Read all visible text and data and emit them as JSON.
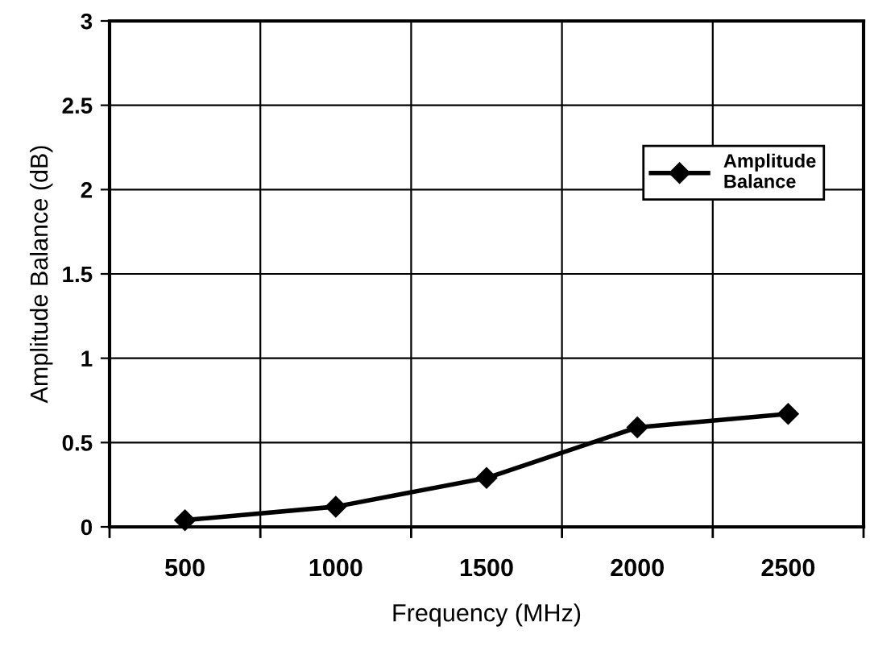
{
  "chart_data": {
    "type": "line",
    "xlabel": "Frequency (MHz)",
    "ylabel": "Amplitude Balance (dB)",
    "categories": [
      "500",
      "1000",
      "1500",
      "2000",
      "2500"
    ],
    "series": [
      {
        "name": "Amplitude\nBalance",
        "color": "#000000",
        "values": [
          0.04,
          0.12,
          0.29,
          0.59,
          0.67
        ]
      }
    ],
    "ylim": [
      0,
      3
    ],
    "yticks": [
      0,
      0.5,
      1,
      1.5,
      2,
      2.5,
      3
    ],
    "grid": true,
    "legend": "right",
    "marker": "diamond",
    "line_style": "solid"
  }
}
